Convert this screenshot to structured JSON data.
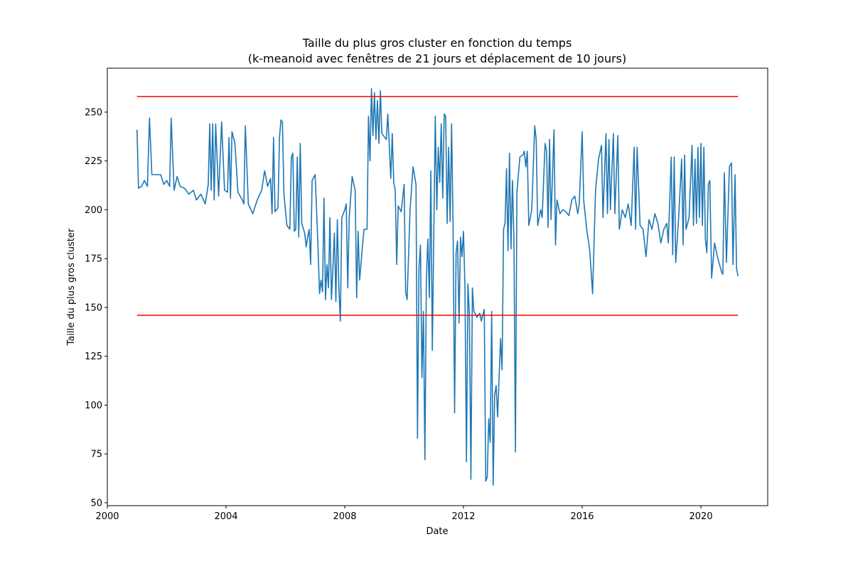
{
  "chart_data": {
    "type": "line",
    "title": "Taille du plus gros cluster en fonction du temps",
    "subtitle": "(k-meanoid avec fenêtres de 21 jours et déplacement de 10 jours)",
    "x_label": "Date",
    "y_label": "Taille du plus gros cluster",
    "xlim": [
      2000,
      2022.25
    ],
    "ylim": [
      48.5,
      272.5
    ],
    "xticks": [
      2000,
      2004,
      2008,
      2012,
      2016,
      2020
    ],
    "yticks": [
      50,
      75,
      100,
      125,
      150,
      175,
      200,
      225,
      250
    ],
    "series": [
      {
        "color": "#1f77b4",
        "x": [
          2001.0,
          2001.05,
          2001.15,
          2001.25,
          2001.35,
          2001.42,
          2001.5,
          2001.65,
          2001.8,
          2001.9,
          2002.0,
          2002.1,
          2002.15,
          2002.25,
          2002.35,
          2002.45,
          2002.6,
          2002.75,
          2002.9,
          2003.0,
          2003.15,
          2003.3,
          2003.4,
          2003.45,
          2003.5,
          2003.55,
          2003.6,
          2003.65,
          2003.75,
          2003.85,
          2003.95,
          2004.05,
          2004.1,
          2004.15,
          2004.2,
          2004.3,
          2004.4,
          2004.55,
          2004.6,
          2004.65,
          2004.75,
          2004.9,
          2005.05,
          2005.2,
          2005.3,
          2005.4,
          2005.5,
          2005.55,
          2005.6,
          2005.65,
          2005.75,
          2005.8,
          2005.85,
          2005.9,
          2005.95,
          2006.05,
          2006.15,
          2006.2,
          2006.25,
          2006.3,
          2006.35,
          2006.4,
          2006.45,
          2006.5,
          2006.55,
          2006.65,
          2006.7,
          2006.75,
          2006.8,
          2006.85,
          2006.9,
          2007.0,
          2007.05,
          2007.1,
          2007.15,
          2007.2,
          2007.25,
          2007.3,
          2007.35,
          2007.4,
          2007.45,
          2007.5,
          2007.55,
          2007.6,
          2007.65,
          2007.7,
          2007.75,
          2007.8,
          2007.85,
          2007.9,
          2008.0,
          2008.05,
          2008.1,
          2008.15,
          2008.25,
          2008.35,
          2008.4,
          2008.45,
          2008.5,
          2008.6,
          2008.65,
          2008.75,
          2008.8,
          2008.85,
          2008.9,
          2008.95,
          2009.0,
          2009.05,
          2009.1,
          2009.15,
          2009.2,
          2009.25,
          2009.4,
          2009.45,
          2009.5,
          2009.55,
          2009.6,
          2009.65,
          2009.7,
          2009.75,
          2009.8,
          2009.9,
          2010.0,
          2010.05,
          2010.1,
          2010.2,
          2010.3,
          2010.4,
          2010.45,
          2010.5,
          2010.55,
          2010.6,
          2010.65,
          2010.7,
          2010.75,
          2010.8,
          2010.85,
          2010.9,
          2010.95,
          2011.05,
          2011.1,
          2011.15,
          2011.2,
          2011.25,
          2011.3,
          2011.35,
          2011.4,
          2011.45,
          2011.5,
          2011.55,
          2011.6,
          2011.65,
          2011.7,
          2011.75,
          2011.8,
          2011.85,
          2011.9,
          2011.95,
          2012.0,
          2012.05,
          2012.1,
          2012.15,
          2012.2,
          2012.25,
          2012.3,
          2012.35,
          2012.45,
          2012.55,
          2012.6,
          2012.7,
          2012.75,
          2012.8,
          2012.85,
          2012.9,
          2012.95,
          2013.0,
          2013.05,
          2013.1,
          2013.15,
          2013.25,
          2013.3,
          2013.35,
          2013.4,
          2013.45,
          2013.5,
          2013.55,
          2013.6,
          2013.65,
          2013.7,
          2013.75,
          2013.8,
          2013.9,
          2014.0,
          2014.05,
          2014.1,
          2014.15,
          2014.2,
          2014.3,
          2014.4,
          2014.45,
          2014.5,
          2014.6,
          2014.65,
          2014.75,
          2014.8,
          2014.85,
          2014.9,
          2014.95,
          2015.05,
          2015.1,
          2015.15,
          2015.25,
          2015.35,
          2015.45,
          2015.55,
          2015.65,
          2015.75,
          2015.85,
          2015.9,
          2016.0,
          2016.05,
          2016.15,
          2016.25,
          2016.35,
          2016.45,
          2016.55,
          2016.65,
          2016.7,
          2016.8,
          2016.85,
          2016.9,
          2016.95,
          2017.05,
          2017.1,
          2017.2,
          2017.25,
          2017.35,
          2017.45,
          2017.55,
          2017.65,
          2017.75,
          2017.8,
          2017.85,
          2017.95,
          2018.05,
          2018.15,
          2018.25,
          2018.35,
          2018.45,
          2018.55,
          2018.65,
          2018.75,
          2018.85,
          2018.9,
          2019.0,
          2019.05,
          2019.1,
          2019.15,
          2019.25,
          2019.35,
          2019.4,
          2019.45,
          2019.5,
          2019.6,
          2019.7,
          2019.75,
          2019.8,
          2019.85,
          2019.9,
          2019.95,
          2020.0,
          2020.05,
          2020.1,
          2020.15,
          2020.2,
          2020.25,
          2020.3,
          2020.36,
          2020.46,
          2020.57,
          2020.7,
          2020.74,
          2020.79,
          2020.86,
          2020.96,
          2021.03,
          2021.08,
          2021.15,
          2021.2,
          2021.25
        ],
        "values": [
          241,
          211,
          212,
          215,
          212,
          247,
          218,
          218,
          218,
          213,
          215,
          212,
          247,
          210,
          217,
          212,
          211,
          208,
          210,
          205,
          208,
          203,
          213,
          244,
          210,
          244,
          205,
          244,
          207,
          245,
          210,
          209,
          237,
          206,
          240,
          234,
          209,
          205,
          203,
          243,
          203,
          198,
          205,
          210,
          220,
          212,
          216,
          198,
          237,
          199,
          201,
          237,
          246,
          245,
          208,
          192,
          190,
          227,
          229,
          189,
          190,
          227,
          186,
          234,
          193,
          188,
          181,
          186,
          190,
          172,
          215,
          218,
          200,
          180,
          157,
          164,
          158,
          206,
          154,
          172,
          160,
          196,
          154,
          170,
          188,
          153,
          195,
          160,
          143,
          196,
          200,
          203,
          160,
          196,
          217,
          210,
          155,
          189,
          164,
          182,
          190,
          190,
          248,
          225,
          262,
          238,
          260,
          236,
          256,
          234,
          261,
          239,
          236,
          249,
          233,
          216,
          239,
          214,
          210,
          172,
          202,
          199,
          213,
          158,
          154,
          200,
          222,
          213,
          83,
          170,
          182,
          114,
          148,
          72,
          165,
          185,
          155,
          220,
          128,
          248,
          200,
          232,
          214,
          244,
          206,
          249,
          248,
          193,
          232,
          194,
          244,
          190,
          96,
          178,
          184,
          142,
          186,
          176,
          189,
          160,
          71,
          162,
          146,
          62,
          160,
          148,
          145,
          147,
          143,
          149,
          61,
          63,
          93,
          81,
          148,
          59,
          105,
          110,
          94,
          134,
          118,
          190,
          193,
          221,
          179,
          229,
          180,
          215,
          185,
          76,
          209,
          227,
          228,
          230,
          222,
          230,
          192,
          200,
          243,
          236,
          192,
          200,
          196,
          234,
          230,
          191,
          236,
          195,
          241,
          182,
          205,
          198,
          200,
          199,
          197,
          205,
          207,
          198,
          203,
          240,
          205,
          190,
          180,
          157,
          210,
          226,
          233,
          196,
          239,
          198,
          236,
          200,
          239,
          198,
          238,
          190,
          200,
          196,
          203,
          192,
          232,
          190,
          232,
          192,
          190,
          176,
          195,
          190,
          198,
          193,
          183,
          190,
          193,
          183,
          227,
          177,
          227,
          173,
          196,
          226,
          182,
          228,
          190,
          196,
          233,
          192,
          226,
          193,
          232,
          196,
          234,
          192,
          232,
          185,
          178,
          213,
          215,
          165,
          183,
          175,
          168,
          167,
          219,
          173,
          222,
          224,
          172,
          218,
          170,
          166
        ]
      },
      {
        "color": "#ff0000",
        "x": [
          2001.0,
          2021.25
        ],
        "values": [
          258,
          258
        ]
      },
      {
        "color": "#ff0000",
        "x": [
          2001.0,
          2021.25
        ],
        "values": [
          146,
          146
        ]
      }
    ]
  }
}
